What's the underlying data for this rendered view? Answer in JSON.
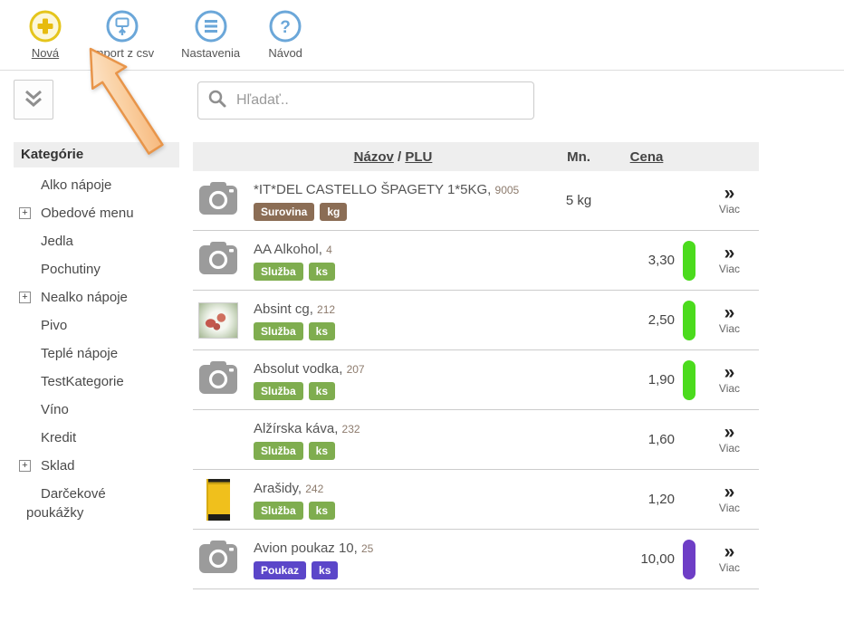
{
  "toolbar": {
    "items": [
      {
        "label": "Nová",
        "icon": "new-plus-icon",
        "underline": true
      },
      {
        "label": "Import z csv",
        "icon": "import-csv-icon",
        "underline": false
      },
      {
        "label": "Nastavenia",
        "icon": "settings-menu-icon",
        "underline": false
      },
      {
        "label": "Návod",
        "icon": "help-icon",
        "underline": false
      }
    ]
  },
  "search": {
    "placeholder": "Hľadať.."
  },
  "sidebar": {
    "header": "Kategórie",
    "items": [
      {
        "label": "Alko nápoje",
        "expandable": false
      },
      {
        "label": "Obedové menu",
        "expandable": true
      },
      {
        "label": "Jedla",
        "expandable": false
      },
      {
        "label": "Pochutiny",
        "expandable": false
      },
      {
        "label": "Nealko nápoje",
        "expandable": true
      },
      {
        "label": "Pivo",
        "expandable": false
      },
      {
        "label": "Teplé nápoje",
        "expandable": false
      },
      {
        "label": "TestKategorie",
        "expandable": false
      },
      {
        "label": "Víno",
        "expandable": false
      },
      {
        "label": "Kredit",
        "expandable": false
      },
      {
        "label": "Sklad",
        "expandable": true
      },
      {
        "label": "Darčekové poukážky",
        "expandable": false
      }
    ]
  },
  "table": {
    "headers": {
      "nazov": "Názov",
      "separator": " / ",
      "plu": "PLU",
      "mn": "Mn.",
      "cena": "Cena"
    },
    "more_label": "Viac",
    "rows": [
      {
        "name": "*IT*DEL CASTELLO ŠPAGETY 1*5KG",
        "plu": "9005",
        "image": "camera-placeholder",
        "tags": [
          "Surovina",
          "kg"
        ],
        "tag_color": "#8b6d55",
        "qty": "5 kg",
        "price": "",
        "bar_color": ""
      },
      {
        "name": "AA Alkohol",
        "plu": "4",
        "image": "camera-placeholder",
        "tags": [
          "Služba",
          "ks"
        ],
        "tag_color": "#7fad4f",
        "qty": "",
        "price": "3,30",
        "bar_color": "#4bdb1d"
      },
      {
        "name": "Absint cg",
        "plu": "212",
        "image": "photo-food",
        "tags": [
          "Služba",
          "ks"
        ],
        "tag_color": "#7fad4f",
        "qty": "",
        "price": "2,50",
        "bar_color": "#4bdb1d"
      },
      {
        "name": "Absolut vodka",
        "plu": "207",
        "image": "camera-placeholder",
        "tags": [
          "Služba",
          "ks"
        ],
        "tag_color": "#7fad4f",
        "qty": "",
        "price": "1,90",
        "bar_color": "#4bdb1d"
      },
      {
        "name": "Alžírska káva",
        "plu": "232",
        "image": "none",
        "tags": [
          "Služba",
          "ks"
        ],
        "tag_color": "#7fad4f",
        "qty": "",
        "price": "1,60",
        "bar_color": ""
      },
      {
        "name": "Arašidy",
        "plu": "242",
        "image": "photo-yellow-package",
        "tags": [
          "Služba",
          "ks"
        ],
        "tag_color": "#7fad4f",
        "qty": "",
        "price": "1,20",
        "bar_color": ""
      },
      {
        "name": "Avion poukaz 10",
        "plu": "25",
        "image": "camera-placeholder",
        "tags": [
          "Poukaz",
          "ks"
        ],
        "tag_color": "#5b46c9",
        "qty": "",
        "price": "10,00",
        "bar_color": "#6e3ec6"
      }
    ]
  },
  "colors": {
    "accent_blue": "#6ba7d9",
    "accent_yellow": "#e5c51c",
    "badge_green": "#7fad4f",
    "badge_brown": "#8b6d55",
    "badge_purple": "#5b46c9",
    "bar_green": "#4bdb1d",
    "bar_purple": "#6e3ec6",
    "arrow_orange": "#e8954a"
  }
}
